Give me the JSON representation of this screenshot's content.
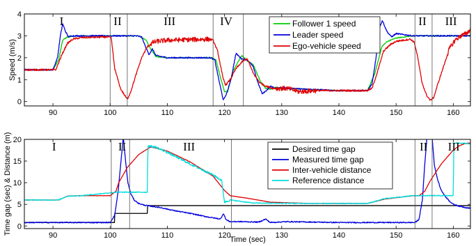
{
  "chart_data": [
    {
      "type": "line",
      "ylabel": "Speed (m/s)",
      "xlabel": "",
      "xlim": [
        85,
        163
      ],
      "ylim": [
        -0.2,
        4
      ],
      "x_ticks": [
        "90",
        "100",
        "110",
        "120",
        "130",
        "140",
        "150",
        "160"
      ],
      "y_ticks": [
        "0",
        "1",
        "2",
        "3",
        "4"
      ],
      "grid": false,
      "legend_position": "top-right",
      "phase_labels": [
        {
          "label": "I",
          "x": 91.5
        },
        {
          "label": "II",
          "x": 101.3
        },
        {
          "label": "III",
          "x": 110.4
        },
        {
          "label": "IV",
          "x": 120.3
        },
        {
          "label": "I",
          "x": 138.5
        },
        {
          "label": "II",
          "x": 154.6
        },
        {
          "label": "III",
          "x": 159.6
        }
      ],
      "phase_boundaries": [
        100,
        103,
        118,
        123.3,
        153.3,
        156.3
      ],
      "series": [
        {
          "name": "Follower 1 speed",
          "color": "#00cc00",
          "x": [
            85,
            90,
            91,
            91.7,
            92.5,
            95,
            99.8,
            100.2,
            105,
            106.3,
            107.2,
            108,
            110,
            117.8,
            118.5,
            119.3,
            120,
            120.6,
            121.5,
            123,
            124,
            125,
            126.3,
            127.2,
            128,
            129,
            131,
            140,
            145,
            146.3,
            147.5,
            148.5,
            150,
            153,
            155,
            163
          ],
          "y": [
            1.45,
            1.45,
            1.9,
            2.8,
            2.95,
            3.0,
            3.0,
            3.0,
            3.0,
            2.8,
            2.35,
            2.05,
            2.0,
            2.0,
            1.9,
            1.1,
            0.45,
            0.5,
            1.4,
            2.1,
            1.85,
            1.7,
            0.9,
            0.6,
            0.55,
            0.65,
            0.6,
            0.5,
            0.5,
            1.3,
            2.5,
            2.75,
            2.9,
            3.0,
            3.0,
            3.0
          ],
          "noise": 0.02
        },
        {
          "name": "Leader speed",
          "color": "#0000dd",
          "x": [
            85,
            90,
            90.8,
            91.3,
            91.7,
            92.2,
            92.7,
            93.3,
            95,
            99.9,
            100.1,
            102,
            104.5,
            105.5,
            106.2,
            106.8,
            107.4,
            108,
            110,
            117.5,
            118.3,
            119,
            119.8,
            120.5,
            121.2,
            122,
            123,
            124,
            125,
            125.8,
            126.6,
            127.3,
            128,
            129,
            130,
            131,
            140,
            145,
            145.8,
            146.5,
            147.1,
            147.6,
            148.4,
            149.2,
            150,
            153,
            155,
            160,
            163
          ],
          "y": [
            1.45,
            1.45,
            2.0,
            3.0,
            3.55,
            3.2,
            2.95,
            3.0,
            3.0,
            3.0,
            3.0,
            3.0,
            3.0,
            2.95,
            2.5,
            2.15,
            2.4,
            2.1,
            2.0,
            2.0,
            1.9,
            1.0,
            0.05,
            0.45,
            1.1,
            2.2,
            1.95,
            1.9,
            1.6,
            0.9,
            0.35,
            0.5,
            0.7,
            0.6,
            0.65,
            0.6,
            0.5,
            0.5,
            0.8,
            2.0,
            3.4,
            3.7,
            3.2,
            2.95,
            3.1,
            3.0,
            3.0,
            3.0,
            3.0
          ],
          "noise": 0.03
        },
        {
          "name": "Ego-vehicle speed",
          "color": "#e00000",
          "x": [
            85,
            90.5,
            91.5,
            92.5,
            93.5,
            95,
            99.7,
            100.2,
            100.8,
            101.8,
            102.5,
            103,
            103.6,
            104.5,
            105.5,
            106.5,
            107.5,
            108.3,
            110,
            117.5,
            118,
            118.8,
            119.7,
            120.2,
            121,
            122,
            123.2,
            124,
            125,
            126.2,
            127.3,
            128.5,
            129.5,
            131,
            133,
            136,
            140,
            145,
            145.8,
            146.8,
            147.8,
            149,
            150,
            152.5,
            153.2,
            153.8,
            154.5,
            155.3,
            156,
            156.6,
            157.3,
            158.3,
            159.3,
            160.3,
            161.3,
            162.3,
            163
          ],
          "y": [
            1.45,
            1.45,
            2.1,
            2.65,
            2.85,
            2.92,
            2.95,
            2.9,
            1.5,
            0.6,
            0.3,
            0.1,
            0.45,
            1.2,
            2.0,
            2.5,
            2.7,
            2.75,
            2.8,
            2.85,
            2.8,
            2.3,
            1.1,
            0.75,
            1.0,
            1.5,
            1.85,
            1.95,
            1.3,
            0.85,
            0.7,
            0.6,
            0.6,
            0.6,
            0.45,
            0.5,
            0.5,
            0.5,
            0.6,
            1.4,
            2.3,
            2.6,
            2.75,
            2.85,
            2.7,
            2.0,
            0.9,
            0.3,
            0.05,
            0.2,
            0.8,
            1.6,
            2.4,
            2.8,
            3.0,
            3.1,
            3.3
          ],
          "noise": 0.04,
          "noisy_ranges": [
            [
              107,
              117.5
            ],
            [
              129,
              136
            ],
            [
              159,
              163
            ]
          ],
          "noisy_amount": 0.11
        }
      ]
    },
    {
      "type": "line",
      "ylabel": "Time gap (sec) & Distance (m)",
      "xlabel": "Time (sec)",
      "xlim": [
        85,
        163
      ],
      "ylim": [
        -0.6,
        20
      ],
      "x_ticks": [
        "90",
        "100",
        "110",
        "120",
        "130",
        "140",
        "150",
        "160"
      ],
      "y_ticks": [
        "0",
        "5",
        "10",
        "15",
        "20"
      ],
      "grid": false,
      "legend_position": "top-right",
      "phase_labels": [
        {
          "label": "I",
          "x": 90.2
        },
        {
          "label": "II",
          "x": 102.1
        },
        {
          "label": "III",
          "x": 113.8
        },
        {
          "label": "I",
          "x": 138.5
        },
        {
          "label": "II",
          "x": 154.8
        },
        {
          "label": "III",
          "x": 160.1
        }
      ],
      "phase_boundaries": [
        100.2,
        103.4,
        121.2,
        153.3,
        156.3
      ],
      "series": [
        {
          "name": "Desired time gap",
          "color": "#000000",
          "x": [
            85,
            100.8,
            100.8,
            101.2,
            101.2,
            106.5,
            106.5,
            160,
            160,
            163
          ],
          "y": [
            0.8,
            0.8,
            2.9,
            2.9,
            2.9,
            2.9,
            4.7,
            4.7,
            4.7,
            4.7
          ],
          "noise": 0
        },
        {
          "name": "Measured time gap",
          "color": "#0000dd",
          "x": [
            85,
            100,
            100.8,
            101.4,
            101.9,
            102.3,
            102.7,
            103.1,
            103.6,
            104.2,
            105,
            106,
            107,
            109,
            111,
            114,
            117,
            119.3,
            119.8,
            120.3,
            121,
            123,
            126,
            127.2,
            128,
            131,
            140,
            150,
            153.3,
            154,
            154.6,
            155,
            155.4,
            156.3,
            156.7,
            157.2,
            157.8,
            158.5,
            159.3,
            160,
            161,
            162,
            163
          ],
          "y": [
            0.8,
            0.8,
            2.5,
            8.0,
            15.0,
            20.5,
            15.0,
            10.0,
            7.5,
            6.0,
            5.2,
            4.8,
            4.6,
            4.2,
            3.6,
            2.9,
            2.1,
            1.6,
            2.9,
            1.4,
            1.0,
            1.0,
            0.9,
            1.6,
            0.8,
            1.0,
            0.8,
            0.8,
            0.8,
            1.5,
            6.0,
            14.0,
            20.5,
            20.5,
            14.0,
            11.0,
            8.5,
            7.0,
            5.8,
            5.0,
            4.6,
            4.3,
            4.1
          ],
          "noise": 0.12
        },
        {
          "name": "Inter-vehicle distance",
          "color": "#e00000",
          "x": [
            85,
            91,
            92.5,
            95,
            100,
            101,
            101.5,
            103,
            105,
            107,
            108,
            110,
            114,
            118,
            120,
            121,
            124,
            128,
            135,
            145,
            148,
            153,
            154,
            155,
            156,
            158,
            160,
            161,
            162,
            163
          ],
          "y": [
            6.0,
            6.0,
            6.9,
            7.0,
            7.0,
            8.0,
            10.0,
            13.5,
            16.5,
            18.2,
            18.0,
            17.3,
            14.8,
            11.5,
            8.2,
            7.0,
            6.4,
            5.5,
            5.2,
            5.2,
            6.2,
            7.0,
            7.0,
            8.0,
            10.5,
            14.5,
            17.5,
            18.5,
            19.0,
            19.2
          ],
          "noise": 0.03
        },
        {
          "name": "Reference distance",
          "color": "#00dddd",
          "x": [
            85,
            91,
            92.5,
            95,
            101,
            106.5,
            106.6,
            108,
            110,
            114,
            118,
            119.5,
            120,
            121,
            125,
            135,
            145,
            148,
            153,
            157,
            160,
            160.1,
            163
          ],
          "y": [
            6.0,
            6.0,
            6.9,
            7.0,
            7.8,
            7.8,
            18.5,
            18.2,
            17.0,
            14.3,
            11.8,
            10.5,
            5.5,
            6.0,
            5.3,
            5.2,
            5.2,
            6.3,
            7.0,
            7.0,
            7.0,
            19.2,
            19.0
          ],
          "noise": 0.1,
          "noisy_ranges": [
            [
              106.6,
              121
            ]
          ],
          "noisy_amount": 0.25
        }
      ]
    }
  ]
}
